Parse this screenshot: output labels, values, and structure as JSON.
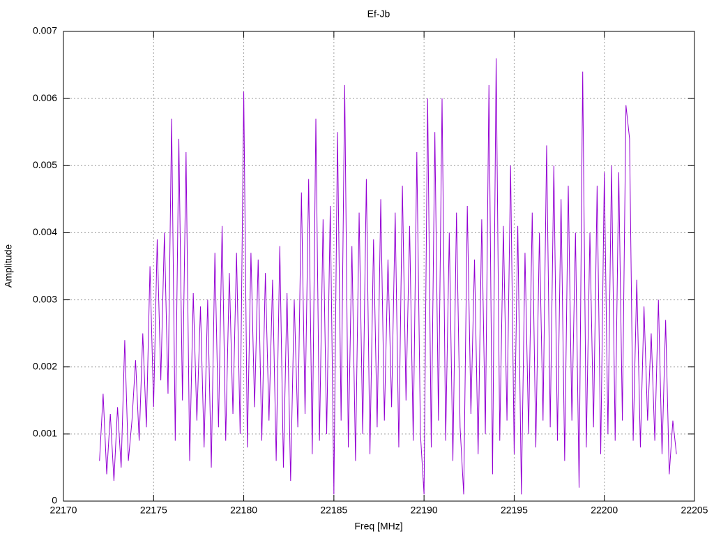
{
  "chart_data": {
    "type": "line",
    "title": "Ef-Jb",
    "x_label": "Freq [MHz]",
    "y_label": "Amplitude",
    "color": "#9400d3",
    "grid": true,
    "xlim": [
      22170,
      22205
    ],
    "xticks": [
      22170,
      22175,
      22180,
      22185,
      22190,
      22195,
      22200,
      22205
    ],
    "ylim": [
      0,
      0.007
    ],
    "yticks": [
      0,
      0.001,
      0.002,
      0.003,
      0.004,
      0.005,
      0.006,
      0.007
    ],
    "x": [
      22172.0,
      22172.2,
      22172.4,
      22172.6,
      22172.8,
      22173.0,
      22173.2,
      22173.4,
      22173.6,
      22173.8,
      22174.0,
      22174.2,
      22174.4,
      22174.6,
      22174.8,
      22175.0,
      22175.2,
      22175.4,
      22175.6,
      22175.8,
      22176.0,
      22176.2,
      22176.4,
      22176.6,
      22176.8,
      22177.0,
      22177.2,
      22177.4,
      22177.6,
      22177.8,
      22178.0,
      22178.2,
      22178.4,
      22178.6,
      22178.8,
      22179.0,
      22179.2,
      22179.4,
      22179.6,
      22179.8,
      22180.0,
      22180.2,
      22180.4,
      22180.6,
      22180.8,
      22181.0,
      22181.2,
      22181.4,
      22181.6,
      22181.8,
      22182.0,
      22182.2,
      22182.4,
      22182.6,
      22182.8,
      22183.0,
      22183.2,
      22183.4,
      22183.6,
      22183.8,
      22184.0,
      22184.2,
      22184.4,
      22184.6,
      22184.8,
      22185.0,
      22185.2,
      22185.4,
      22185.6,
      22185.8,
      22186.0,
      22186.2,
      22186.4,
      22186.6,
      22186.8,
      22187.0,
      22187.2,
      22187.4,
      22187.6,
      22187.8,
      22188.0,
      22188.2,
      22188.4,
      22188.6,
      22188.8,
      22189.0,
      22189.2,
      22189.4,
      22189.6,
      22189.8,
      22190.0,
      22190.2,
      22190.4,
      22190.6,
      22190.8,
      22191.0,
      22191.2,
      22191.4,
      22191.6,
      22191.8,
      22192.0,
      22192.2,
      22192.4,
      22192.6,
      22192.8,
      22193.0,
      22193.2,
      22193.4,
      22193.6,
      22193.8,
      22194.0,
      22194.2,
      22194.4,
      22194.6,
      22194.8,
      22195.0,
      22195.2,
      22195.4,
      22195.6,
      22195.8,
      22196.0,
      22196.2,
      22196.4,
      22196.6,
      22196.8,
      22197.0,
      22197.2,
      22197.4,
      22197.6,
      22197.8,
      22198.0,
      22198.2,
      22198.4,
      22198.6,
      22198.8,
      22199.0,
      22199.2,
      22199.4,
      22199.6,
      22199.8,
      22200.0,
      22200.2,
      22200.4,
      22200.6,
      22200.8,
      22201.0,
      22201.2,
      22201.4,
      22201.6,
      22201.8,
      22202.0,
      22202.2,
      22202.4,
      22202.6,
      22202.8,
      22203.0,
      22203.2,
      22203.4,
      22203.6,
      22203.8,
      22204.0
    ],
    "values": [
      0.0006,
      0.0016,
      0.0004,
      0.0013,
      0.0003,
      0.0014,
      0.0005,
      0.0024,
      0.0006,
      0.0012,
      0.0021,
      0.0009,
      0.0025,
      0.0011,
      0.0035,
      0.0014,
      0.0039,
      0.0018,
      0.004,
      0.0016,
      0.0057,
      0.0009,
      0.0054,
      0.0015,
      0.0052,
      0.0006,
      0.0031,
      0.0012,
      0.0029,
      0.0008,
      0.003,
      0.0005,
      0.0037,
      0.0011,
      0.0041,
      0.0009,
      0.0034,
      0.0013,
      0.0037,
      0.001,
      0.0061,
      0.0008,
      0.0037,
      0.0014,
      0.0036,
      0.0009,
      0.0034,
      0.0012,
      0.0033,
      0.0006,
      0.0038,
      0.0005,
      0.0031,
      0.0003,
      0.003,
      0.0011,
      0.0046,
      0.0013,
      0.0048,
      0.0007,
      0.0057,
      0.0009,
      0.0042,
      0.001,
      0.0044,
      0.0001,
      0.0055,
      0.0012,
      0.0062,
      0.0008,
      0.0038,
      0.0006,
      0.0043,
      0.001,
      0.0048,
      0.0007,
      0.0039,
      0.0011,
      0.0045,
      0.0012,
      0.0036,
      0.0014,
      0.0043,
      0.0008,
      0.0047,
      0.0015,
      0.0041,
      0.0009,
      0.0052,
      0.001,
      0.0001,
      0.006,
      0.0008,
      0.0055,
      0.0012,
      0.006,
      0.0009,
      0.004,
      0.0006,
      0.0043,
      0.0011,
      0.0001,
      0.0044,
      0.0013,
      0.0036,
      0.0007,
      0.0042,
      0.001,
      0.0062,
      0.0004,
      0.0066,
      0.0009,
      0.0041,
      0.0012,
      0.005,
      0.0007,
      0.0041,
      0.0001,
      0.0037,
      0.001,
      0.0043,
      0.0008,
      0.004,
      0.0012,
      0.0053,
      0.0011,
      0.005,
      0.0009,
      0.0045,
      0.0006,
      0.0047,
      0.0012,
      0.004,
      0.0002,
      0.0064,
      0.0008,
      0.004,
      0.0011,
      0.0047,
      0.0007,
      0.0049,
      0.001,
      0.005,
      0.0009,
      0.0049,
      0.0012,
      0.0059,
      0.0054,
      0.0009,
      0.0033,
      0.0008,
      0.0029,
      0.0012,
      0.0025,
      0.0009,
      0.003,
      0.0007,
      0.0027,
      0.0004,
      0.0012,
      0.0007
    ]
  }
}
